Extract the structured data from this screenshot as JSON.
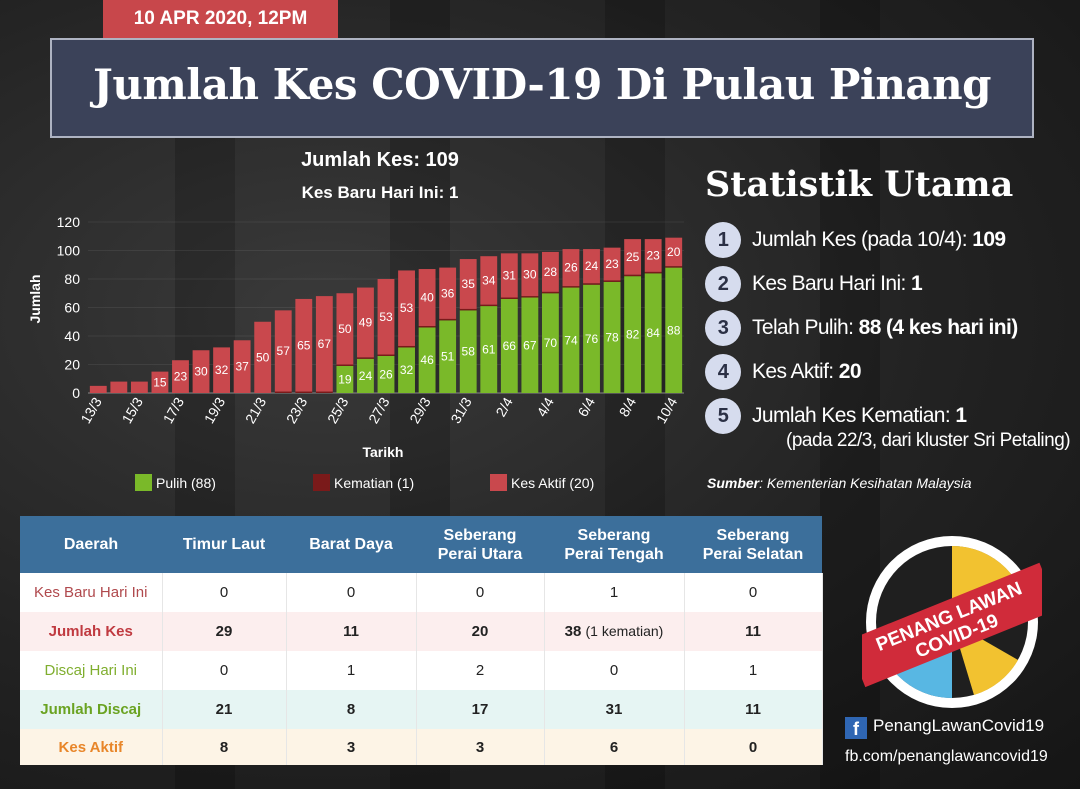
{
  "header": {
    "date": "10 APR 2020, 12PM",
    "title": "Jumlah Kes COVID-19 Di Pulau Pinang"
  },
  "chart_header": {
    "total_cases": "Jumlah Kes: 109",
    "new_cases": "Kes Baru Hari Ini: 1"
  },
  "chart_data": {
    "type": "bar",
    "stacked": true,
    "xlabel": "Tarikh",
    "ylabel": "Jumlah",
    "ylim": [
      0,
      120
    ],
    "yticks": [
      0,
      20,
      40,
      60,
      80,
      100,
      120
    ],
    "categories": [
      "13/3",
      "14/3",
      "15/3",
      "16/3",
      "17/3",
      "18/3",
      "19/3",
      "20/3",
      "21/3",
      "22/3",
      "23/3",
      "24/3",
      "25/3",
      "26/3",
      "27/3",
      "28/3",
      "29/3",
      "30/3",
      "31/3",
      "1/4",
      "2/4",
      "3/4",
      "4/4",
      "5/4",
      "6/4",
      "7/4",
      "8/4",
      "9/4",
      "10/4"
    ],
    "xtick_labels": [
      "13/3",
      "15/3",
      "17/3",
      "19/3",
      "21/3",
      "23/3",
      "25/3",
      "27/3",
      "29/3",
      "31/3",
      "2/4",
      "4/4",
      "6/4",
      "8/4",
      "10/4"
    ],
    "series": [
      {
        "name": "Pulih (88)",
        "color": "#7ab929",
        "values": [
          0,
          0,
          0,
          0,
          0,
          0,
          0,
          0,
          0,
          0,
          0,
          0,
          19,
          24,
          26,
          32,
          46,
          51,
          58,
          61,
          66,
          67,
          70,
          74,
          76,
          78,
          82,
          84,
          88
        ]
      },
      {
        "name": "Kematian (1)",
        "color": "#7a1a1a",
        "values": [
          0,
          0,
          0,
          0,
          0,
          0,
          0,
          0,
          0,
          1,
          1,
          1,
          1,
          1,
          1,
          1,
          1,
          1,
          1,
          1,
          1,
          1,
          1,
          1,
          1,
          1,
          1,
          1,
          1
        ]
      },
      {
        "name": "Kes Aktif (20)",
        "color": "#c9484d",
        "values": [
          5,
          8,
          8,
          15,
          23,
          30,
          32,
          37,
          50,
          57,
          65,
          67,
          50,
          49,
          53,
          53,
          40,
          36,
          35,
          34,
          31,
          30,
          28,
          26,
          24,
          23,
          25,
          23,
          20
        ]
      }
    ],
    "bar_labels_pulih": [
      "",
      "",
      "",
      "",
      "",
      "",
      "",
      "",
      "",
      "",
      "",
      "",
      "19",
      "24",
      "26",
      "32",
      "46",
      "51",
      "58",
      "61",
      "66",
      "67",
      "70",
      "74",
      "76",
      "78",
      "82",
      "84",
      "88"
    ],
    "bar_labels_aktif": [
      "",
      "",
      "",
      "15",
      "23",
      "30",
      "32",
      "37",
      "50",
      "57",
      "65",
      "67",
      "50",
      "49",
      "53",
      "53",
      "40",
      "36",
      "35",
      "34",
      "31",
      "30",
      "28",
      "26",
      "24",
      "23",
      "25",
      "23",
      "20"
    ]
  },
  "stats": {
    "title": "Statistik Utama",
    "items": [
      {
        "num": "1",
        "label": "Jumlah Kes (pada 10/4):",
        "value": "109"
      },
      {
        "num": "2",
        "label": "Kes Baru Hari Ini:",
        "value": "1"
      },
      {
        "num": "3",
        "label": "Telah Pulih:",
        "value": "88 (4 kes hari ini)"
      },
      {
        "num": "4",
        "label": "Kes Aktif:",
        "value": "20"
      },
      {
        "num": "5",
        "label": "Jumlah Kes Kematian:",
        "value": "1"
      }
    ],
    "item5_sub": "(pada 22/3, dari kluster Sri Petaling)",
    "source_label": "Sumber",
    "source_text": ": Kementerian Kesihatan Malaysia"
  },
  "table": {
    "headers": [
      "Daerah",
      "Timur Laut",
      "Barat Daya",
      "Seberang Perai Utara",
      "Seberang Perai Tengah",
      "Seberang Perai Selatan"
    ],
    "rows": [
      {
        "label": "Kes Baru Hari Ini",
        "color": "#b0494d",
        "values": [
          "0",
          "0",
          "0",
          "1",
          "0"
        ]
      },
      {
        "label": "Jumlah Kes",
        "color": "#c03a40",
        "values": [
          "29",
          "11",
          "20",
          "38",
          "11"
        ]
      },
      {
        "label": "Discaj Hari Ini",
        "color": "#7fae2e",
        "values": [
          "0",
          "1",
          "2",
          "0",
          "1"
        ]
      },
      {
        "label": "Jumlah Discaj",
        "color": "#6aa322",
        "values": [
          "21",
          "8",
          "17",
          "31",
          "11"
        ]
      },
      {
        "label": "Kes Aktif",
        "color": "#e8862a",
        "values": [
          "8",
          "3",
          "3",
          "6",
          "0"
        ]
      }
    ],
    "death_note": "(1 kematian)"
  },
  "badge": {
    "line1": "PENANG LAWAN",
    "line2": "COVID-19"
  },
  "social": {
    "page_name": "PenangLawanCovid19",
    "url": "fb.com/penanglawancovid19"
  }
}
